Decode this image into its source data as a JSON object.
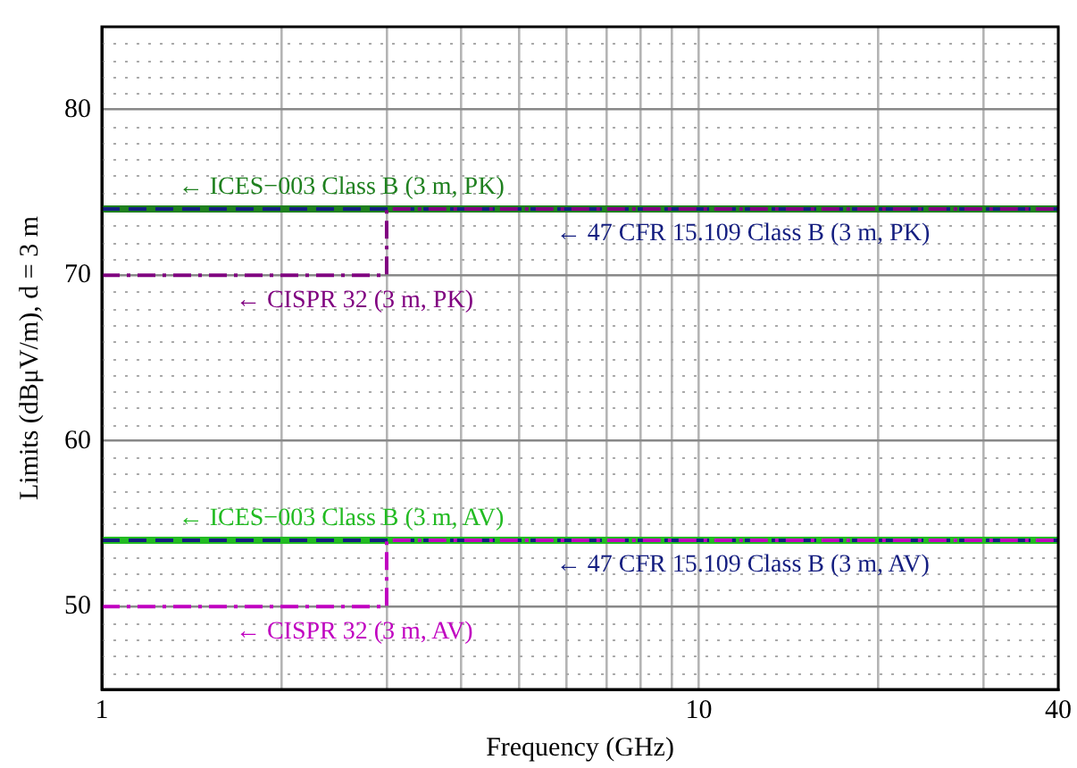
{
  "chart_data": {
    "type": "line",
    "xlabel": "Frequency (GHz)",
    "ylabel": "Limits (dBμV/m), d = 3 m",
    "log": "x",
    "xlim": [
      1,
      40
    ],
    "xticks": [
      1,
      {
        "value": 2,
        "label": null
      },
      {
        "value": 3,
        "label": null
      },
      {
        "value": 4,
        "label": null
      },
      {
        "value": 5,
        "label": null
      },
      {
        "value": 6,
        "label": null
      },
      {
        "value": 7,
        "label": null
      },
      {
        "value": 8,
        "label": null
      },
      {
        "value": 9,
        "label": null
      },
      10,
      {
        "value": 20,
        "label": null
      },
      {
        "value": 30,
        "label": null
      },
      40
    ],
    "ylim": [
      45,
      85
    ],
    "yticks": [
      {
        "value": 45,
        "label": null
      },
      {
        "value": 46,
        "label": null
      },
      {
        "value": 47,
        "label": null
      },
      {
        "value": 48,
        "label": null
      },
      {
        "value": 49,
        "label": null
      },
      50,
      {
        "value": 51,
        "label": null
      },
      {
        "value": 52,
        "label": null
      },
      {
        "value": 53,
        "label": null
      },
      {
        "value": 54,
        "label": null
      },
      {
        "value": 55,
        "label": null
      },
      {
        "value": 56,
        "label": null
      },
      {
        "value": 57,
        "label": null
      },
      {
        "value": 58,
        "label": null
      },
      {
        "value": 59,
        "label": null
      },
      60,
      {
        "value": 61,
        "label": null
      },
      {
        "value": 62,
        "label": null
      },
      {
        "value": 63,
        "label": null
      },
      {
        "value": 64,
        "label": null
      },
      {
        "value": 65,
        "label": null
      },
      {
        "value": 66,
        "label": null
      },
      {
        "value": 67,
        "label": null
      },
      {
        "value": 68,
        "label": null
      },
      {
        "value": 69,
        "label": null
      },
      70,
      {
        "value": 71,
        "label": null
      },
      {
        "value": 72,
        "label": null
      },
      {
        "value": 73,
        "label": null
      },
      {
        "value": 74,
        "label": null
      },
      {
        "value": 75,
        "label": null
      },
      {
        "value": 76,
        "label": null
      },
      {
        "value": 77,
        "label": null
      },
      {
        "value": 78,
        "label": null
      },
      {
        "value": 79,
        "label": null
      },
      80,
      {
        "value": 81,
        "label": null
      },
      {
        "value": 82,
        "label": null
      },
      {
        "value": 83,
        "label": null
      },
      {
        "value": 84,
        "label": null
      },
      {
        "value": 85,
        "label": null
      }
    ],
    "grid": true,
    "legend": false,
    "marker": "none",
    "series": [
      {
        "name": "← ICES−003 Class B (3 m, PK)",
        "color": "#1f801f",
        "line_style": "solid",
        "x": [
          1,
          40
        ],
        "values": [
          74,
          74
        ]
      },
      {
        "name": "← 47 CFR 15.109 Class B (3 m, PK)",
        "color": "#141e80",
        "line_style": "dashed",
        "x": [
          1,
          40
        ],
        "values": [
          74,
          74
        ]
      },
      {
        "name": "← CISPR 32 (3 m, PK)",
        "color": "#800080",
        "type": "step",
        "line_style": "dashdot",
        "x": [
          1,
          3,
          40
        ],
        "values": [
          70,
          74,
          74
        ]
      },
      {
        "name": "← ICES−003 Class B (3 m, AV)",
        "color": "#22bb22",
        "line_style": "solid",
        "x": [
          1,
          40
        ],
        "values": [
          54,
          54
        ]
      },
      {
        "name": "← 47 CFR 15.109 Class B (3 m, AV)",
        "color": "#141e80",
        "line_style": "dashed",
        "x": [
          1,
          40
        ],
        "values": [
          54,
          54
        ]
      },
      {
        "name": "← CISPR 32 (3 m, AV)",
        "color": "#c000c0",
        "type": "step",
        "line_style": "dashdot",
        "x": [
          1,
          3,
          40
        ],
        "values": [
          50,
          54,
          54
        ]
      }
    ]
  }
}
